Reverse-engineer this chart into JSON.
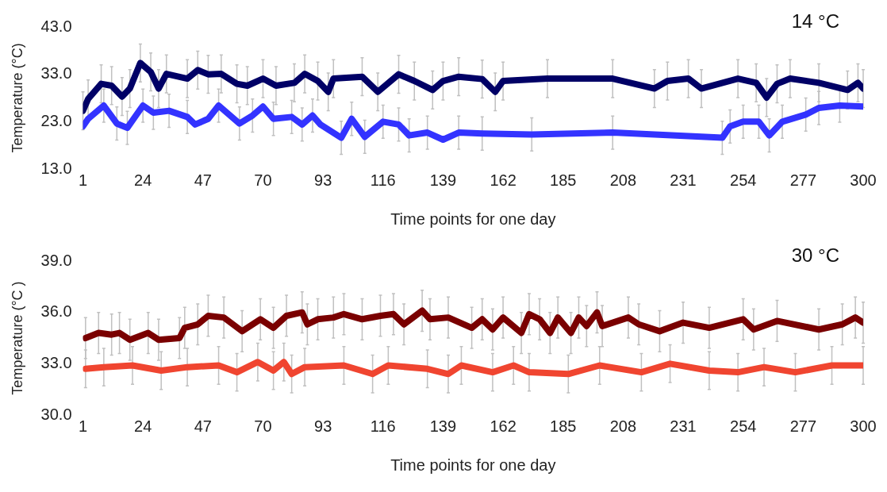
{
  "chart_data": [
    {
      "type": "line",
      "annotations": [
        "14 °C"
      ],
      "xlabel": "Time points for one day",
      "ylabel": "Temperature (°C)",
      "xlim": [
        1,
        300
      ],
      "xticks": [
        1,
        24,
        47,
        70,
        93,
        116,
        139,
        162,
        185,
        208,
        231,
        254,
        277,
        300
      ],
      "ylim": [
        13,
        43
      ],
      "yticks": [
        {
          "value": 13,
          "label": "13.0"
        },
        {
          "value": 23,
          "label": "23.0"
        },
        {
          "value": 33,
          "label": "33.0"
        },
        {
          "value": 43,
          "label": "43.0"
        }
      ],
      "grid": false,
      "legend": false,
      "marker": "none",
      "line_style": "solid",
      "series": [
        {
          "color": "#000066",
          "x": [
            1,
            3,
            8,
            12,
            16,
            19,
            23,
            27,
            30,
            33,
            41,
            45,
            49,
            54,
            60,
            64,
            70,
            75,
            82,
            86,
            91,
            95,
            97,
            108,
            114,
            122,
            128,
            135,
            139,
            145,
            154,
            159,
            162,
            179,
            204,
            220,
            225,
            233,
            238,
            252,
            259,
            263,
            267,
            272,
            283,
            294,
            298,
            300
          ],
          "values": [
            25.3,
            27.8,
            31.0,
            30.6,
            28.3,
            30.0,
            35.4,
            33.5,
            30.0,
            33.1,
            32.1,
            33.9,
            33.0,
            33.1,
            31.0,
            30.6,
            32.1,
            30.6,
            31.2,
            33.1,
            31.6,
            29.3,
            32.1,
            32.5,
            29.3,
            33.0,
            31.6,
            29.7,
            31.6,
            32.5,
            32.0,
            29.3,
            31.6,
            32.1,
            32.1,
            30.0,
            31.6,
            32.1,
            30.0,
            32.1,
            31.2,
            28.1,
            31.0,
            32.1,
            31.2,
            29.7,
            31.2,
            30.0
          ],
          "errors": [
            4,
            4,
            4,
            4,
            4,
            4,
            4,
            4,
            4,
            4,
            4,
            4,
            4,
            4,
            4,
            4,
            4,
            4,
            4,
            4,
            4,
            4,
            4,
            4,
            4,
            4,
            4,
            4,
            4,
            4,
            4,
            4,
            4,
            4,
            4,
            4,
            4,
            4,
            4,
            4,
            4,
            4,
            4,
            4,
            4,
            4,
            4,
            4
          ]
        },
        {
          "color": "#3333ff",
          "x": [
            1,
            3,
            9,
            14,
            18,
            24,
            28,
            34,
            41,
            44,
            49,
            53,
            61,
            66,
            70,
            74,
            81,
            85,
            89,
            92,
            100,
            104,
            109,
            116,
            122,
            126,
            133,
            139,
            145,
            154,
            173,
            204,
            246,
            249,
            254,
            260,
            264,
            269,
            278,
            283,
            291,
            300
          ],
          "values": [
            22.0,
            23.6,
            26.4,
            22.6,
            21.7,
            26.4,
            24.9,
            25.3,
            24.0,
            22.4,
            23.6,
            26.4,
            22.6,
            24.3,
            26.2,
            23.6,
            24.0,
            22.4,
            24.3,
            22.4,
            19.6,
            23.6,
            19.8,
            23.0,
            22.4,
            20.1,
            20.7,
            19.2,
            20.7,
            20.5,
            20.3,
            20.7,
            19.6,
            22.0,
            23.0,
            23.0,
            20.1,
            23.0,
            24.5,
            25.9,
            26.4,
            26.2
          ],
          "errors": [
            null,
            null,
            3.5,
            3.5,
            3.5,
            3.5,
            3.5,
            3.5,
            3.5,
            null,
            null,
            3.5,
            3.5,
            3.5,
            null,
            3.5,
            3.5,
            3.5,
            3.5,
            null,
            3.5,
            3.5,
            3.5,
            3.5,
            3.5,
            3.5,
            3.5,
            null,
            3.5,
            3.5,
            3.5,
            3.5,
            3.5,
            3.5,
            3.5,
            3.5,
            3.5,
            3.5,
            3.5,
            3.5,
            3.5,
            null
          ]
        }
      ]
    },
    {
      "type": "line",
      "annotations": [
        "30 °C"
      ],
      "xlabel": "Time points for one day",
      "ylabel": "Temperature (°C )",
      "xlim": [
        1,
        300
      ],
      "xticks": [
        1,
        24,
        47,
        70,
        93,
        116,
        139,
        162,
        185,
        208,
        231,
        254,
        277,
        300
      ],
      "ylim": [
        30,
        39
      ],
      "yticks": [
        {
          "value": 30,
          "label": "30.0"
        },
        {
          "value": 33,
          "label": "33.0"
        },
        {
          "value": 36,
          "label": "36.0"
        },
        {
          "value": 39,
          "label": "39.0"
        }
      ],
      "grid": false,
      "legend": false,
      "marker": "none",
      "line_style": "solid",
      "series": [
        {
          "color": "#7a0000",
          "x": [
            2,
            7,
            12,
            15,
            19,
            26,
            30,
            38,
            40,
            45,
            49,
            55,
            62,
            69,
            74,
            79,
            85,
            87,
            91,
            97,
            101,
            108,
            115,
            120,
            124,
            131,
            134,
            141,
            150,
            154,
            158,
            162,
            169,
            172,
            176,
            180,
            183,
            188,
            191,
            194,
            198,
            200,
            210,
            214,
            222,
            231,
            241,
            254,
            258,
            267,
            283,
            292,
            297,
            300
          ],
          "values": [
            34.5,
            34.8,
            34.7,
            34.8,
            34.4,
            34.8,
            34.4,
            34.5,
            35.1,
            35.3,
            35.8,
            35.7,
            34.9,
            35.6,
            35.1,
            35.8,
            36.0,
            35.3,
            35.6,
            35.7,
            35.9,
            35.6,
            35.8,
            35.9,
            35.3,
            36.1,
            35.6,
            35.7,
            35.1,
            35.6,
            35.0,
            35.7,
            34.8,
            35.9,
            35.6,
            34.8,
            35.7,
            34.8,
            35.7,
            35.2,
            36.0,
            35.2,
            35.7,
            35.3,
            34.9,
            35.4,
            35.1,
            35.6,
            35.0,
            35.5,
            35.0,
            35.3,
            35.7,
            35.4
          ],
          "errors": [
            1.2,
            1.2,
            1.2,
            1.2,
            1.2,
            1.2,
            1.2,
            1.2,
            1.2,
            1.2,
            1.2,
            1.2,
            1.2,
            1.2,
            1.2,
            1.2,
            1.2,
            1.2,
            1.2,
            1.2,
            1.2,
            1.2,
            1.2,
            1.2,
            1.2,
            1.2,
            1.2,
            1.2,
            1.2,
            1.2,
            1.2,
            1.2,
            1.2,
            1.2,
            1.2,
            1.2,
            1.2,
            1.2,
            1.2,
            1.2,
            1.2,
            1.2,
            1.2,
            1.2,
            1.2,
            1.2,
            1.2,
            1.2,
            1.2,
            1.2,
            1.2,
            1.2,
            1.2,
            1.2
          ]
        },
        {
          "color": "#f04530",
          "x": [
            2,
            9,
            20,
            31,
            41,
            53,
            60,
            68,
            74,
            78,
            81,
            86,
            101,
            112,
            118,
            133,
            141,
            146,
            158,
            166,
            172,
            187,
            199,
            215,
            226,
            241,
            252,
            262,
            274,
            288,
            300
          ],
          "values": [
            32.7,
            32.8,
            32.9,
            32.6,
            32.8,
            32.9,
            32.5,
            33.1,
            32.6,
            33.1,
            32.4,
            32.8,
            32.9,
            32.4,
            32.9,
            32.7,
            32.4,
            32.9,
            32.5,
            32.9,
            32.5,
            32.4,
            32.9,
            32.5,
            33.0,
            32.6,
            32.5,
            32.8,
            32.5,
            32.9,
            32.9
          ],
          "errors": [
            1.1,
            1.1,
            1.1,
            1.1,
            1.1,
            1.1,
            1.1,
            1.1,
            1.1,
            1.1,
            1.1,
            1.1,
            1.1,
            1.1,
            1.1,
            1.1,
            1.1,
            1.1,
            1.1,
            1.1,
            1.1,
            1.1,
            1.1,
            1.1,
            1.1,
            1.1,
            1.1,
            1.1,
            1.1,
            1.1,
            1.1
          ]
        }
      ]
    }
  ]
}
